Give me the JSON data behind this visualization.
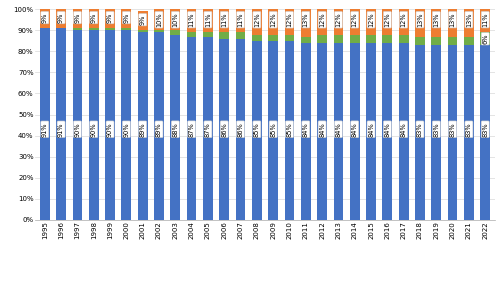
{
  "years": [
    1995,
    1996,
    1997,
    1998,
    1999,
    2000,
    2001,
    2002,
    2003,
    2004,
    2005,
    2006,
    2007,
    2008,
    2009,
    2010,
    2011,
    2012,
    2013,
    2014,
    2015,
    2016,
    2017,
    2018,
    2019,
    2020,
    2021,
    2022
  ],
  "mothers": [
    91,
    91,
    90,
    90,
    90,
    90,
    89,
    89,
    88,
    87,
    87,
    86,
    86,
    85,
    85,
    85,
    84,
    84,
    84,
    84,
    84,
    84,
    84,
    83,
    83,
    83,
    83,
    83
  ],
  "fathers": [
    0,
    0,
    1,
    1,
    1,
    1,
    1,
    1,
    2,
    2,
    2,
    3,
    3,
    3,
    3,
    3,
    3,
    4,
    4,
    4,
    4,
    4,
    4,
    4,
    4,
    4,
    4,
    6
  ],
  "either": [
    9,
    9,
    9,
    9,
    9,
    9,
    9,
    10,
    10,
    11,
    11,
    11,
    11,
    12,
    12,
    12,
    13,
    12,
    12,
    12,
    12,
    12,
    12,
    13,
    13,
    13,
    13,
    11
  ],
  "mothers_color": "#4472c4",
  "fathers_color": "#70ad47",
  "either_color": "#ed7d31",
  "grid_color": "#d9d9d9",
  "ylabel_values": [
    "0%",
    "10%",
    "20%",
    "30%",
    "40%",
    "50%",
    "60%",
    "70%",
    "80%",
    "90%",
    "100%"
  ],
  "label_fontsize": 4.8,
  "tick_fontsize": 5.0,
  "bar_width": 0.6
}
